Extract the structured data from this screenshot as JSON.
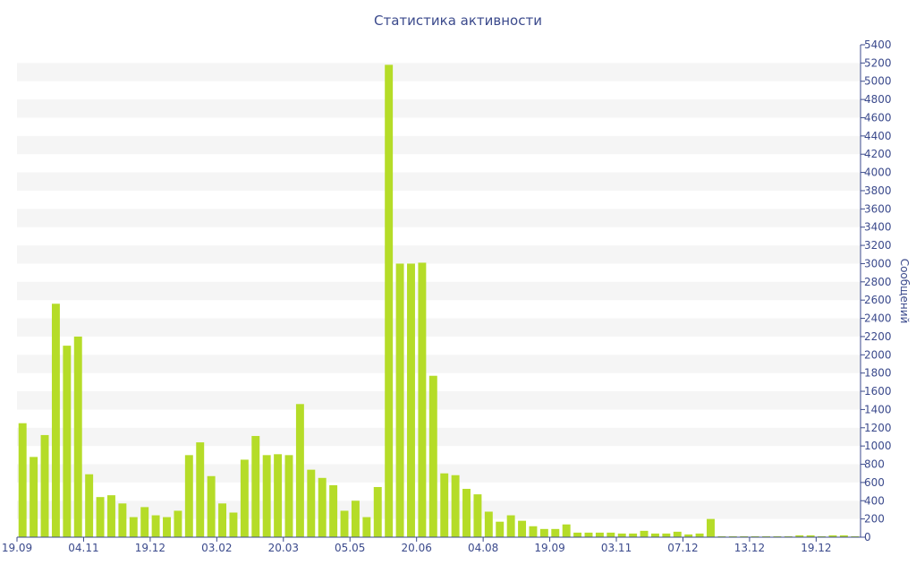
{
  "chart_data": {
    "type": "bar",
    "title": "Статистика активности",
    "ylabel": "Сообщений",
    "xlabel": "",
    "ylim": [
      0,
      5400
    ],
    "yticks": [
      0,
      200,
      400,
      600,
      800,
      1000,
      1200,
      1400,
      1600,
      1800,
      2000,
      2200,
      2400,
      2600,
      2800,
      3000,
      3200,
      3400,
      3600,
      3800,
      4000,
      4200,
      4400,
      4600,
      4800,
      5000,
      5200,
      5400
    ],
    "x_tick_labels": [
      {
        "index": 0,
        "label": "19.09"
      },
      {
        "index": 6,
        "label": "04.11"
      },
      {
        "index": 12,
        "label": "19.12"
      },
      {
        "index": 18,
        "label": "03.02"
      },
      {
        "index": 24,
        "label": "20.03"
      },
      {
        "index": 30,
        "label": "05.05"
      },
      {
        "index": 36,
        "label": "20.06"
      },
      {
        "index": 42,
        "label": "04.08"
      },
      {
        "index": 48,
        "label": "19.09"
      },
      {
        "index": 54,
        "label": "03.11"
      },
      {
        "index": 60,
        "label": "07.12"
      },
      {
        "index": 66,
        "label": "13.12"
      },
      {
        "index": 72,
        "label": "19.12"
      }
    ],
    "values": [
      1250,
      880,
      1120,
      2560,
      2100,
      2200,
      690,
      440,
      460,
      370,
      220,
      330,
      240,
      220,
      290,
      900,
      1040,
      670,
      370,
      270,
      850,
      1110,
      900,
      910,
      900,
      1460,
      740,
      650,
      570,
      290,
      400,
      220,
      550,
      5180,
      3000,
      3000,
      3010,
      1770,
      700,
      680,
      530,
      470,
      280,
      170,
      240,
      180,
      120,
      90,
      90,
      140,
      50,
      50,
      50,
      50,
      40,
      40,
      70,
      40,
      40,
      60,
      30,
      40,
      200,
      10,
      10,
      10,
      10,
      10,
      10,
      10,
      20,
      20,
      10,
      20,
      20,
      10
    ],
    "grid": true,
    "y_axis_side": "right",
    "colors": {
      "bar": "#b5dc28",
      "band": "#f5f5f5",
      "axis": "#3b4a8c"
    }
  }
}
